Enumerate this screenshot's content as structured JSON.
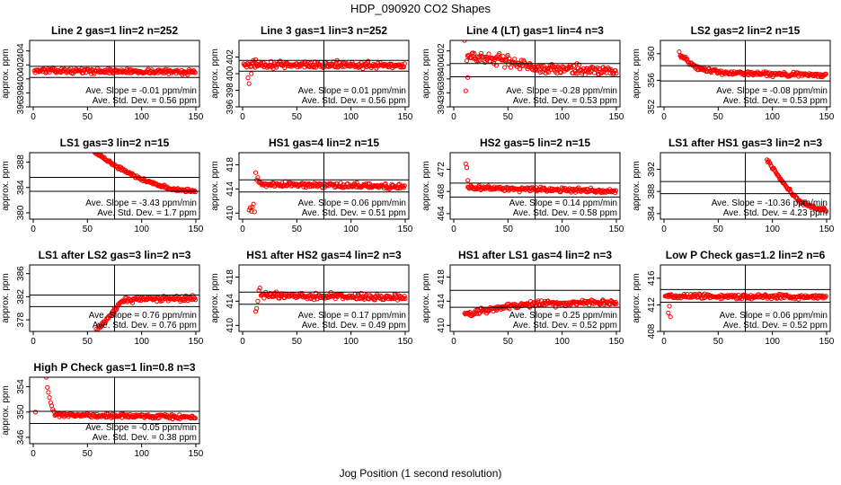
{
  "figure": {
    "title": "HDP_090920  CO2 Shapes",
    "xlabel": "Jog Position (1 second resolution)",
    "ylabel": "approx. ppm",
    "point_color": "#ff0000",
    "line_color": "#000000",
    "slope_label": "Ave. Slope = ",
    "slope_unit": "ppm/min",
    "std_label": "Ave. Std. Dev. = ",
    "std_unit": "ppm"
  },
  "chart_data": [
    {
      "type": "scatter",
      "title": "Line 2 gas=1 lin=2 n=252",
      "xlim": [
        0,
        150
      ],
      "ylim": [
        396,
        405.5
      ],
      "yticks": [
        396,
        398,
        400,
        402,
        404
      ],
      "xticks": [
        0,
        50,
        100,
        150
      ],
      "hlines": [
        400.2,
        401.8
      ],
      "vline": 75,
      "slope": "-0.01",
      "std": "0.56",
      "shape": {
        "start": 1,
        "end": 150,
        "knots": [
          [
            1,
            401.2
          ],
          [
            150,
            401.0
          ]
        ],
        "noise": 0.2,
        "extra": []
      }
    },
    {
      "type": "scatter",
      "title": "Line 3 gas=1 lin=3 n=252",
      "xlim": [
        0,
        150
      ],
      "ylim": [
        396,
        404
      ],
      "yticks": [
        396,
        398,
        400,
        402
      ],
      "xticks": [
        0,
        50,
        100,
        150
      ],
      "hlines": [
        400.3,
        401.6
      ],
      "vline": 75,
      "slope": "0.01",
      "std": "0.56",
      "shape": {
        "start": 1,
        "end": 150,
        "knots": [
          [
            1,
            401
          ],
          [
            12,
            401.1
          ],
          [
            150,
            401.0
          ]
        ],
        "noise": 0.25,
        "extra": [
          [
            5,
            399.5
          ],
          [
            6,
            398.8
          ],
          [
            8,
            400
          ],
          [
            10,
            401.6
          ],
          [
            12,
            401.7
          ]
        ]
      }
    },
    {
      "type": "scatter",
      "title": "Line 4 (LT) gas=1 lin=4 n=3",
      "xlim": [
        0,
        150
      ],
      "ylim": [
        394,
        403.5
      ],
      "yticks": [
        394,
        396,
        398,
        400,
        402
      ],
      "xticks": [
        0,
        50,
        100,
        150
      ],
      "hlines": [
        398.3,
        400.2
      ],
      "vline": 75,
      "slope": "-0.28",
      "std": "0.53",
      "shape": {
        "start": 12,
        "end": 150,
        "knots": [
          [
            12,
            401.3
          ],
          [
            40,
            400.8
          ],
          [
            80,
            399.5
          ],
          [
            150,
            399.2
          ]
        ],
        "noise": 0.45,
        "extra": [
          [
            10,
            403.5
          ],
          [
            11,
            396.3
          ],
          [
            13,
            398.2
          ]
        ]
      }
    },
    {
      "type": "scatter",
      "title": "LS2 gas=2 lin=2 n=15",
      "xlim": [
        0,
        150
      ],
      "ylim": [
        352,
        362
      ],
      "yticks": [
        352,
        356,
        360
      ],
      "xticks": [
        0,
        50,
        100,
        150
      ],
      "hlines": [
        355.9,
        358.2
      ],
      "vline": 75,
      "slope": "-0.08",
      "std": "0.53",
      "shape": {
        "start": 15,
        "end": 150,
        "knots": [
          [
            15,
            359.8
          ],
          [
            30,
            357.8
          ],
          [
            60,
            357.1
          ],
          [
            150,
            356.8
          ]
        ],
        "noise": 0.2,
        "extra": [
          [
            14,
            360.3
          ],
          [
            16,
            359.4
          ]
        ]
      }
    },
    {
      "type": "scatter",
      "title": "LS1 gas=3 lin=2 n=15",
      "xlim": [
        0,
        150
      ],
      "ylim": [
        379,
        389.5
      ],
      "yticks": [
        380,
        384,
        388
      ],
      "xticks": [
        0,
        50,
        100,
        150
      ],
      "hlines": [
        383.4,
        385.6
      ],
      "vline": 75,
      "slope": "-3.43",
      "std": "1.7",
      "shape": {
        "start": 55,
        "end": 150,
        "knots": [
          [
            55,
            389.8
          ],
          [
            75,
            387.5
          ],
          [
            100,
            385.3
          ],
          [
            125,
            383.9
          ],
          [
            150,
            383.3
          ]
        ],
        "noise": 0.15,
        "extra": []
      }
    },
    {
      "type": "scatter",
      "title": "HS1 gas=4 lin=2 n=15",
      "xlim": [
        0,
        150
      ],
      "ylim": [
        409,
        420
      ],
      "yticks": [
        410,
        414,
        418
      ],
      "xticks": [
        0,
        50,
        100,
        150
      ],
      "hlines": [
        413.5,
        415.5
      ],
      "vline": 75,
      "slope": "0.06",
      "std": "0.51",
      "shape": {
        "start": 15,
        "end": 150,
        "knots": [
          [
            15,
            414.8
          ],
          [
            150,
            414.4
          ]
        ],
        "noise": 0.25,
        "extra": [
          [
            6,
            410.5
          ],
          [
            7,
            410.9
          ],
          [
            8,
            410.3
          ],
          [
            9,
            411
          ],
          [
            10,
            411.5
          ],
          [
            11,
            410.2
          ],
          [
            12,
            416.7
          ],
          [
            13,
            415.5
          ],
          [
            14,
            415.9
          ]
        ]
      }
    },
    {
      "type": "scatter",
      "title": "HS2 gas=5 lin=2 n=15",
      "xlim": [
        0,
        150
      ],
      "ylim": [
        463,
        475
      ],
      "yticks": [
        464,
        468,
        472
      ],
      "xticks": [
        0,
        50,
        100,
        150
      ],
      "hlines": [
        467,
        469.5
      ],
      "vline": 75,
      "slope": "0.14",
      "std": "0.58",
      "shape": {
        "start": 13,
        "end": 150,
        "knots": [
          [
            13,
            468.7
          ],
          [
            150,
            468
          ]
        ],
        "noise": 0.25,
        "extra": [
          [
            11,
            473
          ],
          [
            12,
            472.3
          ],
          [
            13,
            470
          ]
        ]
      }
    },
    {
      "type": "scatter",
      "title": "LS1 after HS1 gas=3 lin=2 n=3",
      "xlim": [
        0,
        150
      ],
      "ylim": [
        383,
        395
      ],
      "yticks": [
        384,
        388,
        392
      ],
      "xticks": [
        0,
        50,
        100,
        150
      ],
      "hlines": [
        387.6,
        389.8
      ],
      "vline": 75,
      "slope": "-10.36",
      "std": "4.23",
      "shape": {
        "start": 95,
        "end": 150,
        "knots": [
          [
            95,
            393.8
          ],
          [
            110,
            389.5
          ],
          [
            125,
            386.2
          ],
          [
            140,
            385
          ],
          [
            150,
            384.7
          ]
        ],
        "noise": 0.2,
        "extra": []
      }
    },
    {
      "type": "scatter",
      "title": "LS1 after LS2 gas=3 lin=2 n=3",
      "xlim": [
        0,
        150
      ],
      "ylim": [
        376,
        387.5
      ],
      "yticks": [
        378,
        382,
        386
      ],
      "xticks": [
        0,
        50,
        100,
        150
      ],
      "hlines": [
        380.3,
        382.3
      ],
      "vline": 75,
      "slope": "0.76",
      "std": "0.76",
      "shape": {
        "start": 58,
        "end": 150,
        "knots": [
          [
            58,
            376.2
          ],
          [
            70,
            378.5
          ],
          [
            80,
            381
          ],
          [
            95,
            381.7
          ],
          [
            150,
            381.8
          ]
        ],
        "noise": 0.3,
        "extra": []
      }
    },
    {
      "type": "scatter",
      "title": "HS1 after HS2 gas=4 lin=2 n=3",
      "xlim": [
        0,
        150
      ],
      "ylim": [
        409,
        420
      ],
      "yticks": [
        410,
        414,
        418
      ],
      "xticks": [
        0,
        50,
        100,
        150
      ],
      "hlines": [
        413.5,
        415.5
      ],
      "vline": 75,
      "slope": "0.17",
      "std": "0.49",
      "shape": {
        "start": 17,
        "end": 150,
        "knots": [
          [
            17,
            415
          ],
          [
            150,
            414.6
          ]
        ],
        "noise": 0.3,
        "extra": [
          [
            12,
            412.3
          ],
          [
            13,
            412.8
          ],
          [
            14,
            414
          ],
          [
            15,
            415.8
          ],
          [
            16,
            416.2
          ]
        ]
      }
    },
    {
      "type": "scatter",
      "title": "HS1 after LS1 gas=4 lin=2 n=3",
      "xlim": [
        0,
        150
      ],
      "ylim": [
        409,
        420
      ],
      "yticks": [
        410,
        414,
        418
      ],
      "xticks": [
        0,
        50,
        100,
        150
      ],
      "hlines": [
        413,
        415.8
      ],
      "vline": 75,
      "slope": "0.25",
      "std": "0.52",
      "shape": {
        "start": 10,
        "end": 150,
        "knots": [
          [
            10,
            411.8
          ],
          [
            25,
            412.3
          ],
          [
            50,
            413.2
          ],
          [
            80,
            413.6
          ],
          [
            150,
            413.9
          ]
        ],
        "noise": 0.3,
        "extra": []
      }
    },
    {
      "type": "scatter",
      "title": "Low P Check gas=1.2 lin=2 n=6",
      "xlim": [
        0,
        150
      ],
      "ylim": [
        408,
        418
      ],
      "yticks": [
        408,
        412,
        416
      ],
      "xticks": [
        0,
        50,
        100,
        150
      ],
      "hlines": [
        412.4,
        414.3
      ],
      "vline": 75,
      "slope": "0.06",
      "std": "0.52",
      "shape": {
        "start": 1,
        "end": 150,
        "knots": [
          [
            1,
            413.3
          ],
          [
            150,
            413.2
          ]
        ],
        "noise": 0.22,
        "extra": [
          [
            4,
            410.8
          ],
          [
            5,
            411.8
          ],
          [
            6,
            410.2
          ]
        ]
      }
    },
    {
      "type": "scatter",
      "title": "High P Check gas=1 lin=0.8 n=3",
      "xlim": [
        0,
        150
      ],
      "ylim": [
        345,
        355.5
      ],
      "yticks": [
        346,
        350,
        354
      ],
      "xticks": [
        0,
        50,
        100,
        150
      ],
      "hlines": [
        348.2,
        350.1
      ],
      "vline": 75,
      "slope": "-0.05",
      "std": "0.38",
      "shape": {
        "start": 20,
        "end": 150,
        "knots": [
          [
            20,
            349.6
          ],
          [
            150,
            349.2
          ]
        ],
        "noise": 0.2,
        "extra": [
          [
            2,
            350
          ],
          [
            12,
            355.5
          ],
          [
            13,
            353.9
          ],
          [
            14,
            353.1
          ],
          [
            15,
            352.3
          ],
          [
            16,
            351.5
          ],
          [
            17,
            351
          ],
          [
            18,
            350.4
          ],
          [
            19,
            350.1
          ]
        ]
      }
    }
  ]
}
